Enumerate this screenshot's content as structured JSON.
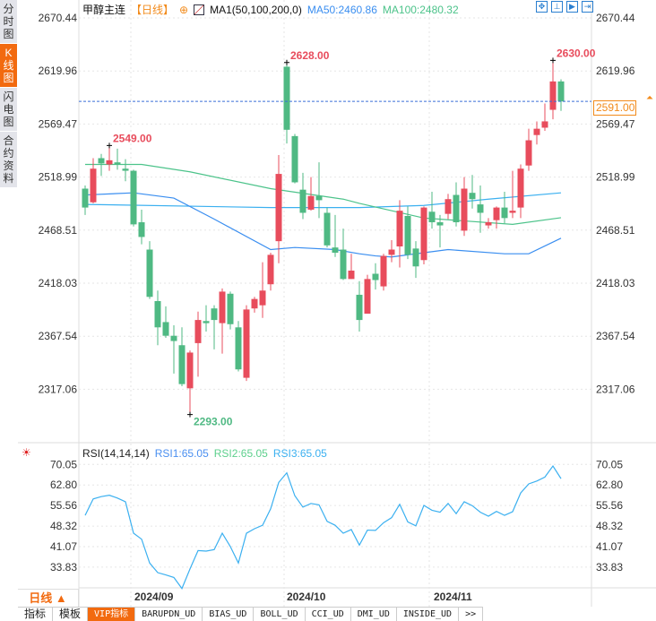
{
  "sidebar": {
    "tabs": [
      {
        "label": "分时图"
      },
      {
        "label": "K线图"
      },
      {
        "label": "闪电图"
      },
      {
        "label": "合约资料"
      }
    ]
  },
  "header": {
    "symbol": "甲醇主连",
    "timeframe": "【日线】",
    "ma_label": "MA1(50,100,200,0)",
    "ma50": "MA50:2460.86",
    "ma100": "MA100:2480.32"
  },
  "toolbar": {
    "icons": [
      "crosshair-icon",
      "zoom-range-icon",
      "play-icon",
      "forward-icon"
    ]
  },
  "price_axis": {
    "labels": [
      "2670.44",
      "2619.96",
      "2569.47",
      "2518.99",
      "2468.51",
      "2418.03",
      "2367.54",
      "2317.06"
    ]
  },
  "annotations": {
    "high1": "2549.00",
    "high2": "2628.00",
    "low": "2293.00",
    "high3": "2630.00"
  },
  "current_price": "2591.00",
  "rsi": {
    "title": "RSI(14,14,14)",
    "rsi1": "RSI1:65.05",
    "rsi2": "RSI2:65.05",
    "rsi3": "RSI3:65.05",
    "labels": [
      "70.05",
      "62.80",
      "55.56",
      "48.32",
      "41.07",
      "33.83"
    ]
  },
  "xaxis": {
    "timeframe": "日线 ▲",
    "dates": [
      "2024/09",
      "2024/10",
      "2024/11"
    ]
  },
  "tabs": [
    "指标",
    "模板",
    "VIP指标",
    "BARUPDN_UD",
    "BIAS_UD",
    "BOLL_UD",
    "CCI_UD",
    "DMI_UD",
    "INSIDE_UD",
    ">>"
  ],
  "colors": {
    "up": "#e84c5c",
    "down": "#4fb983",
    "ma50": "#3a8ef0",
    "ma100": "#4cc38a",
    "ma200": "#3bb0f0",
    "rsi": "#3bb0f0",
    "accent": "#f26a0f"
  },
  "chart_data": {
    "type": "candlestick",
    "ohlc": [
      [
        2508,
        2511,
        2483,
        2490
      ],
      [
        2495,
        2537,
        2494,
        2527
      ],
      [
        2537,
        2541,
        2520,
        2532
      ],
      [
        2531,
        2549,
        2525,
        2535
      ],
      [
        2533,
        2546,
        2526,
        2531
      ],
      [
        2527,
        2536,
        2515,
        2525
      ],
      [
        2525,
        2526,
        2472,
        2474
      ],
      [
        2476,
        2488,
        2455,
        2462
      ],
      [
        2450,
        2458,
        2403,
        2405
      ],
      [
        2401,
        2411,
        2359,
        2376
      ],
      [
        2381,
        2396,
        2366,
        2368
      ],
      [
        2368,
        2378,
        2332,
        2363
      ],
      [
        2359,
        2376,
        2320,
        2322
      ],
      [
        2318,
        2354,
        2293,
        2352
      ],
      [
        2361,
        2391,
        2329,
        2383
      ],
      [
        2382,
        2397,
        2372,
        2380
      ],
      [
        2394,
        2397,
        2355,
        2383
      ],
      [
        2380,
        2413,
        2351,
        2410
      ],
      [
        2408,
        2410,
        2374,
        2379
      ],
      [
        2376,
        2382,
        2334,
        2336
      ],
      [
        2328,
        2397,
        2325,
        2393
      ],
      [
        2394,
        2405,
        2390,
        2403
      ],
      [
        2397,
        2438,
        2385,
        2411
      ],
      [
        2417,
        2447,
        2411,
        2445
      ],
      [
        2458,
        2540,
        2437,
        2522
      ],
      [
        2624,
        2628,
        2551,
        2564
      ],
      [
        2558,
        2560,
        2513,
        2514
      ],
      [
        2507,
        2523,
        2479,
        2485
      ],
      [
        2488,
        2519,
        2487,
        2501
      ],
      [
        2501,
        2533,
        2480,
        2497
      ],
      [
        2485,
        2490,
        2452,
        2454
      ],
      [
        2452,
        2483,
        2443,
        2447
      ],
      [
        2450,
        2470,
        2421,
        2422
      ],
      [
        2422,
        2446,
        2422,
        2430
      ],
      [
        2407,
        2420,
        2372,
        2383
      ],
      [
        2389,
        2426,
        2389,
        2422
      ],
      [
        2427,
        2437,
        2412,
        2421
      ],
      [
        2415,
        2446,
        2411,
        2444
      ],
      [
        2445,
        2459,
        2438,
        2450
      ],
      [
        2453,
        2497,
        2433,
        2487
      ],
      [
        2482,
        2491,
        2441,
        2445
      ],
      [
        2451,
        2458,
        2423,
        2434
      ],
      [
        2440,
        2491,
        2436,
        2490
      ],
      [
        2486,
        2505,
        2470,
        2476
      ],
      [
        2476,
        2483,
        2452,
        2473
      ],
      [
        2484,
        2503,
        2479,
        2498
      ],
      [
        2502,
        2514,
        2472,
        2476
      ],
      [
        2468,
        2519,
        2463,
        2508
      ],
      [
        2504,
        2521,
        2489,
        2498
      ],
      [
        2493,
        2511,
        2466,
        2485
      ],
      [
        2473,
        2480,
        2470,
        2476
      ],
      [
        2478,
        2491,
        2470,
        2490
      ],
      [
        2490,
        2505,
        2475,
        2480
      ],
      [
        2485,
        2525,
        2480,
        2487
      ],
      [
        2490,
        2531,
        2480,
        2527
      ],
      [
        2530,
        2565,
        2525,
        2554
      ],
      [
        2559,
        2572,
        2550,
        2565
      ],
      [
        2566,
        2589,
        2563,
        2572
      ],
      [
        2583,
        2630,
        2574,
        2610
      ],
      [
        2610,
        2612,
        2582,
        2591
      ]
    ],
    "ma50": [
      [
        0,
        2502
      ],
      [
        6,
        2504
      ],
      [
        11,
        2499
      ],
      [
        16,
        2479
      ],
      [
        23,
        2450
      ],
      [
        26,
        2452
      ],
      [
        31,
        2450
      ],
      [
        34,
        2446
      ],
      [
        36,
        2444
      ],
      [
        38,
        2443
      ],
      [
        45,
        2450
      ],
      [
        52,
        2446
      ],
      [
        55,
        2446
      ],
      [
        59,
        2460.86
      ]
    ],
    "ma100": [
      [
        0,
        2531
      ],
      [
        7,
        2531
      ],
      [
        13,
        2524
      ],
      [
        23,
        2508
      ],
      [
        32,
        2498
      ],
      [
        34,
        2494
      ],
      [
        42,
        2480
      ],
      [
        53,
        2474
      ],
      [
        59,
        2480.32
      ]
    ],
    "ma200": [
      [
        0,
        2493
      ],
      [
        23,
        2490
      ],
      [
        34,
        2490
      ],
      [
        42,
        2492
      ],
      [
        50,
        2498
      ],
      [
        59,
        2504
      ]
    ],
    "rsi": [
      52.1,
      57.9,
      58.7,
      59.2,
      58.2,
      56.9,
      45.8,
      43.7,
      35.3,
      31.9,
      31.1,
      30.2,
      26.3,
      33.2,
      39.7,
      39.5,
      40.0,
      45.8,
      41.1,
      35.3,
      45.8,
      47.4,
      48.6,
      54.4,
      63.7,
      67.1,
      59.0,
      55.0,
      56.3,
      55.8,
      50.0,
      48.6,
      45.8,
      47.1,
      41.6,
      46.9,
      46.8,
      49.5,
      51.3,
      56.0,
      49.8,
      48.4,
      55.6,
      53.9,
      53.2,
      56.3,
      52.7,
      56.9,
      55.5,
      53.2,
      51.8,
      53.5,
      52.1,
      53.4,
      60.0,
      63.2,
      64.2,
      65.6,
      69.5,
      65.05
    ],
    "ylim": [
      2293,
      2670.44
    ],
    "rsi_ylim": [
      26,
      72
    ]
  }
}
